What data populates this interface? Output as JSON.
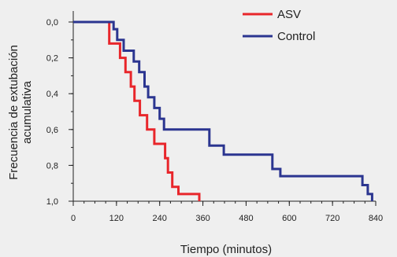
{
  "chart_data": {
    "type": "line",
    "step": true,
    "xlabel": "Tiempo (minutos)",
    "ylabel_lines": [
      "Frecuencia de extubación",
      "acumulativa"
    ],
    "xlim": [
      0,
      840
    ],
    "ylim": [
      0,
      1
    ],
    "y_inverted": true,
    "x_ticks": [
      {
        "value": 0,
        "label": "0"
      },
      {
        "value": 120,
        "label": "120"
      },
      {
        "value": 240,
        "label": "240"
      },
      {
        "value": 360,
        "label": "360"
      },
      {
        "value": 480,
        "label": "480"
      },
      {
        "value": 600,
        "label": "600"
      },
      {
        "value": 720,
        "label": "720"
      },
      {
        "value": 840,
        "label": "840"
      }
    ],
    "x_minor_step": 30,
    "y_ticks": [
      {
        "value": 0.0,
        "label": "0,0"
      },
      {
        "value": 0.2,
        "label": "0,2"
      },
      {
        "value": 0.4,
        "label": "0,4"
      },
      {
        "value": 0.6,
        "label": "0,6"
      },
      {
        "value": 0.8,
        "label": "0,8"
      },
      {
        "value": 1.0,
        "label": "1,0"
      }
    ],
    "y_minor_step": 0.1,
    "legend_position": "top-right",
    "series": [
      {
        "name": "ASV",
        "color": "#e8262b",
        "x": [
          0,
          100,
          100,
          130,
          130,
          145,
          145,
          160,
          160,
          170,
          170,
          185,
          185,
          205,
          205,
          225,
          225,
          255,
          255,
          263,
          263,
          275,
          275,
          292,
          292,
          350,
          350
        ],
        "y": [
          0,
          0,
          0.12,
          0.12,
          0.2,
          0.2,
          0.28,
          0.28,
          0.36,
          0.36,
          0.44,
          0.44,
          0.52,
          0.52,
          0.6,
          0.6,
          0.68,
          0.68,
          0.76,
          0.76,
          0.84,
          0.84,
          0.92,
          0.92,
          0.96,
          0.96,
          1.0
        ]
      },
      {
        "name": "Control",
        "color": "#2b3590",
        "x": [
          0,
          112,
          112,
          122,
          122,
          140,
          140,
          168,
          168,
          183,
          183,
          198,
          198,
          208,
          208,
          225,
          225,
          240,
          240,
          252,
          252,
          378,
          378,
          418,
          418,
          553,
          553,
          575,
          575,
          803,
          803,
          818,
          818,
          830,
          830
        ],
        "y": [
          0,
          0,
          0.04,
          0.04,
          0.1,
          0.1,
          0.16,
          0.16,
          0.22,
          0.22,
          0.28,
          0.28,
          0.36,
          0.36,
          0.42,
          0.42,
          0.48,
          0.48,
          0.54,
          0.54,
          0.6,
          0.6,
          0.69,
          0.69,
          0.74,
          0.74,
          0.82,
          0.82,
          0.86,
          0.86,
          0.91,
          0.91,
          0.96,
          0.96,
          1.0
        ]
      }
    ]
  }
}
